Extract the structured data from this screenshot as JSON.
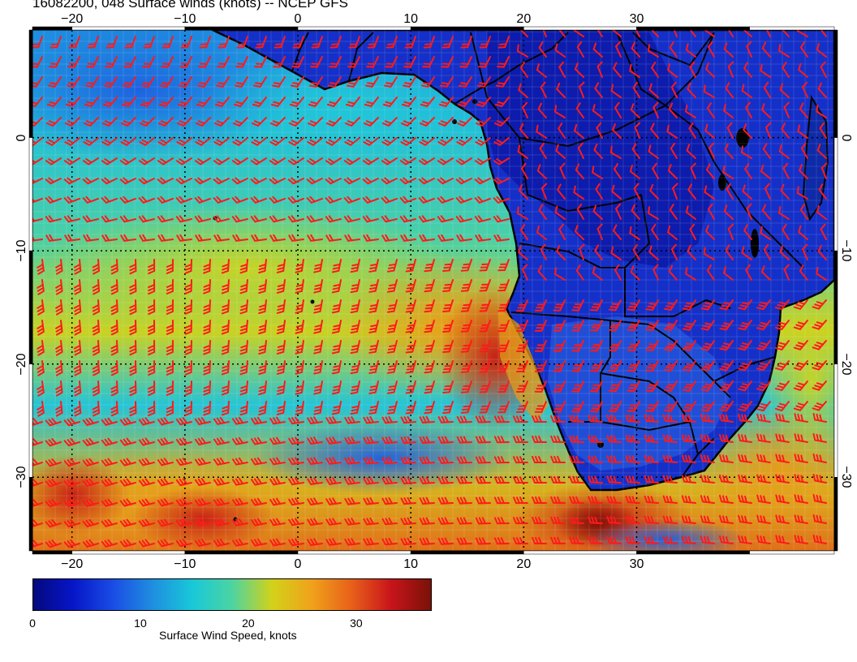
{
  "title": "16082200, 048 Surface winds (knots) -- NCEP GFS",
  "axes": {
    "lon_ticks": [
      "−20",
      "−10",
      "0",
      "10",
      "20",
      "30"
    ],
    "lat_ticks": [
      "0",
      "−10",
      "−20",
      "−30"
    ]
  },
  "colorbar": {
    "label": "Surface Wind Speed, knots",
    "ticks": [
      "0",
      "10",
      "20",
      "30"
    ],
    "range": [
      0,
      37
    ]
  },
  "colors": {
    "barb": "#ff1a1a",
    "land_outline": "#000000"
  }
}
